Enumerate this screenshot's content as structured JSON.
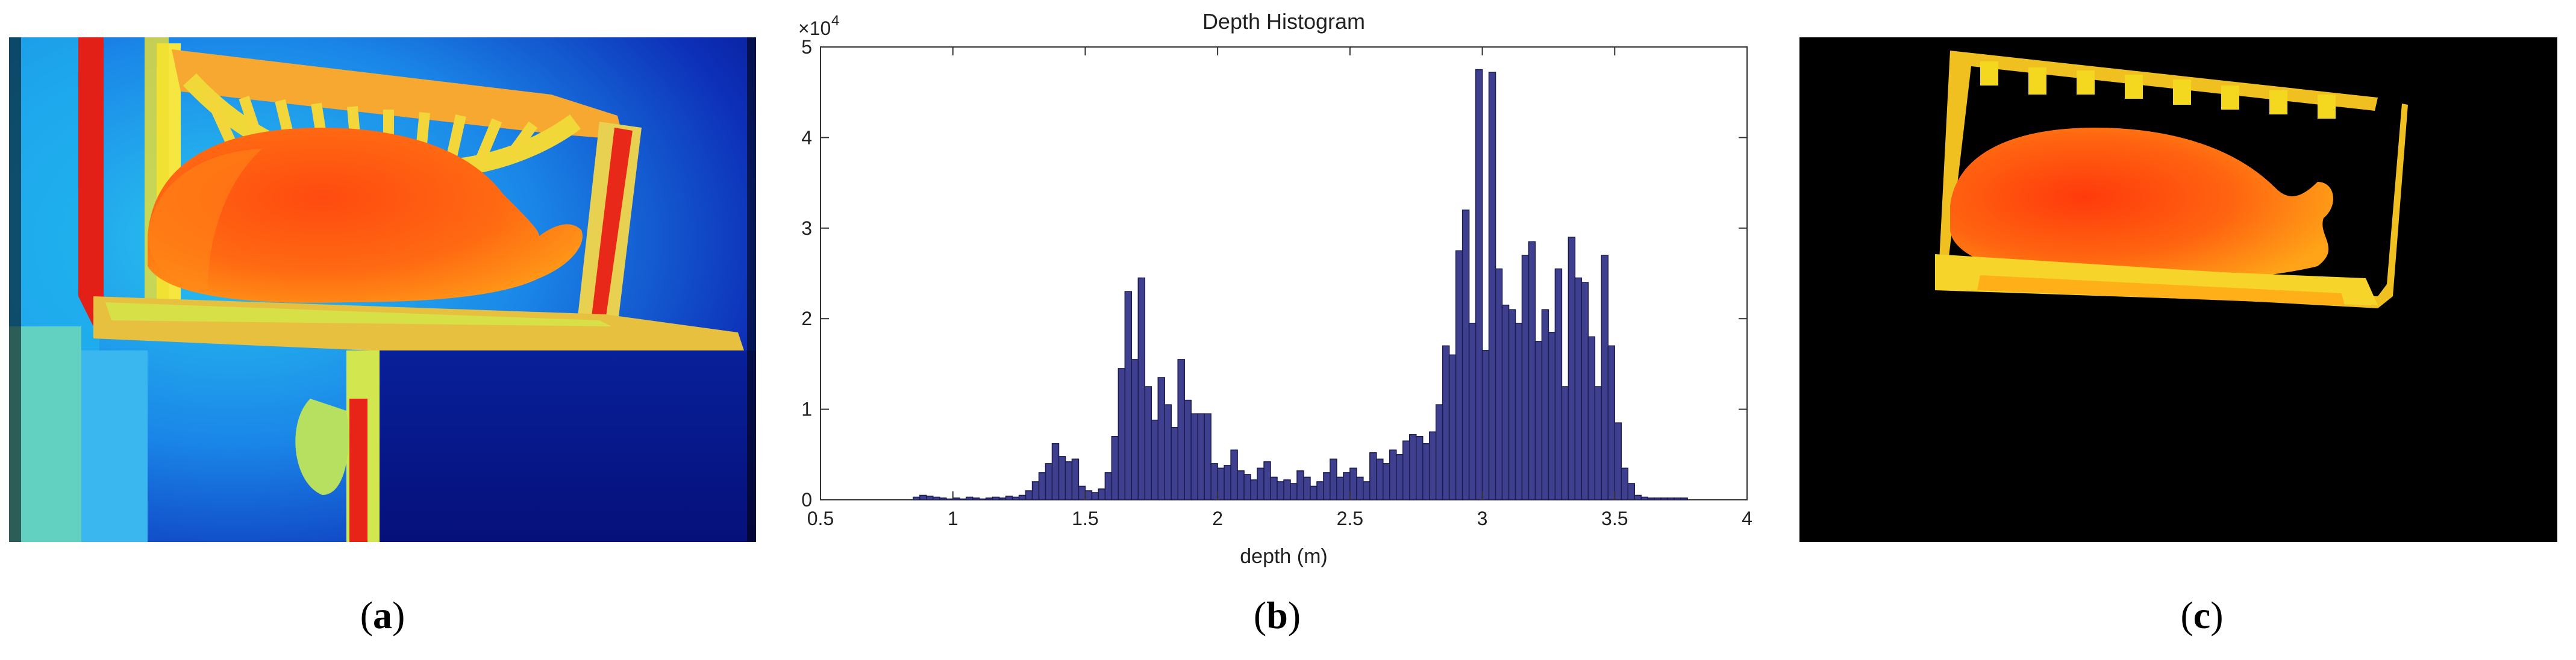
{
  "captions": {
    "a": "a",
    "b": "b",
    "c": "c"
  },
  "chart_data": {
    "type": "bar",
    "title": "Depth Histogram",
    "xlabel": "depth (m)",
    "ylabel": "",
    "y_multiplier_label": "×10",
    "y_multiplier_exponent": "4",
    "xlim": [
      0.5,
      4
    ],
    "ylim": [
      0,
      5
    ],
    "xticks": [
      0.5,
      1,
      1.5,
      2,
      2.5,
      3,
      3.5,
      4
    ],
    "xtick_labels": [
      "0.5",
      "1",
      "1.5",
      "2",
      "2.5",
      "3",
      "3.5",
      "4"
    ],
    "yticks": [
      0,
      1,
      2,
      3,
      4,
      5
    ],
    "ytick_labels": [
      "0",
      "1",
      "2",
      "3",
      "4",
      "5"
    ],
    "bin_width": 0.025,
    "bar_color": "#3f3f8f",
    "bar_edge_color": "#1c1c4e",
    "bins": [
      [
        0.85,
        0.03
      ],
      [
        0.875,
        0.05
      ],
      [
        0.9,
        0.04
      ],
      [
        0.925,
        0.03
      ],
      [
        0.95,
        0.02
      ],
      [
        0.975,
        0.01
      ],
      [
        1.0,
        0.02
      ],
      [
        1.025,
        0.01
      ],
      [
        1.05,
        0.03
      ],
      [
        1.075,
        0.02
      ],
      [
        1.1,
        0.01
      ],
      [
        1.125,
        0.02
      ],
      [
        1.15,
        0.03
      ],
      [
        1.175,
        0.02
      ],
      [
        1.2,
        0.04
      ],
      [
        1.225,
        0.03
      ],
      [
        1.25,
        0.05
      ],
      [
        1.275,
        0.1
      ],
      [
        1.3,
        0.2
      ],
      [
        1.325,
        0.3
      ],
      [
        1.35,
        0.4
      ],
      [
        1.375,
        0.62
      ],
      [
        1.4,
        0.48
      ],
      [
        1.425,
        0.42
      ],
      [
        1.45,
        0.45
      ],
      [
        1.475,
        0.15
      ],
      [
        1.5,
        0.1
      ],
      [
        1.525,
        0.08
      ],
      [
        1.55,
        0.12
      ],
      [
        1.575,
        0.3
      ],
      [
        1.6,
        0.7
      ],
      [
        1.625,
        1.45
      ],
      [
        1.65,
        2.3
      ],
      [
        1.675,
        1.55
      ],
      [
        1.7,
        2.45
      ],
      [
        1.725,
        1.25
      ],
      [
        1.75,
        0.88
      ],
      [
        1.775,
        1.35
      ],
      [
        1.8,
        1.05
      ],
      [
        1.825,
        0.8
      ],
      [
        1.85,
        1.55
      ],
      [
        1.875,
        1.1
      ],
      [
        1.9,
        0.95
      ],
      [
        1.925,
        0.95
      ],
      [
        1.95,
        0.95
      ],
      [
        1.975,
        0.4
      ],
      [
        2.0,
        0.35
      ],
      [
        2.025,
        0.38
      ],
      [
        2.05,
        0.55
      ],
      [
        2.075,
        0.32
      ],
      [
        2.1,
        0.28
      ],
      [
        2.125,
        0.22
      ],
      [
        2.15,
        0.35
      ],
      [
        2.175,
        0.42
      ],
      [
        2.2,
        0.25
      ],
      [
        2.225,
        0.2
      ],
      [
        2.25,
        0.22
      ],
      [
        2.275,
        0.18
      ],
      [
        2.3,
        0.32
      ],
      [
        2.325,
        0.25
      ],
      [
        2.35,
        0.15
      ],
      [
        2.375,
        0.2
      ],
      [
        2.4,
        0.3
      ],
      [
        2.425,
        0.45
      ],
      [
        2.45,
        0.25
      ],
      [
        2.475,
        0.3
      ],
      [
        2.5,
        0.35
      ],
      [
        2.525,
        0.25
      ],
      [
        2.55,
        0.2
      ],
      [
        2.575,
        0.52
      ],
      [
        2.6,
        0.45
      ],
      [
        2.625,
        0.4
      ],
      [
        2.65,
        0.55
      ],
      [
        2.675,
        0.5
      ],
      [
        2.7,
        0.65
      ],
      [
        2.725,
        0.72
      ],
      [
        2.75,
        0.7
      ],
      [
        2.775,
        0.62
      ],
      [
        2.8,
        0.75
      ],
      [
        2.825,
        1.05
      ],
      [
        2.85,
        1.7
      ],
      [
        2.875,
        1.6
      ],
      [
        2.9,
        2.75
      ],
      [
        2.925,
        3.2
      ],
      [
        2.95,
        1.95
      ],
      [
        2.975,
        4.75
      ],
      [
        3.0,
        1.65
      ],
      [
        3.025,
        4.72
      ],
      [
        3.05,
        2.55
      ],
      [
        3.075,
        2.15
      ],
      [
        3.1,
        2.1
      ],
      [
        3.125,
        1.95
      ],
      [
        3.15,
        2.7
      ],
      [
        3.175,
        2.85
      ],
      [
        3.2,
        1.75
      ],
      [
        3.225,
        2.1
      ],
      [
        3.25,
        1.85
      ],
      [
        3.275,
        2.55
      ],
      [
        3.3,
        1.25
      ],
      [
        3.325,
        2.9
      ],
      [
        3.35,
        2.45
      ],
      [
        3.375,
        2.4
      ],
      [
        3.4,
        1.8
      ],
      [
        3.425,
        1.25
      ],
      [
        3.45,
        2.7
      ],
      [
        3.475,
        1.7
      ],
      [
        3.5,
        0.85
      ],
      [
        3.525,
        0.35
      ],
      [
        3.55,
        0.18
      ],
      [
        3.575,
        0.05
      ],
      [
        3.6,
        0.03
      ],
      [
        3.625,
        0.02
      ],
      [
        3.65,
        0.02
      ],
      [
        3.675,
        0.02
      ],
      [
        3.7,
        0.02
      ],
      [
        3.725,
        0.02
      ],
      [
        3.75,
        0.02
      ]
    ]
  }
}
